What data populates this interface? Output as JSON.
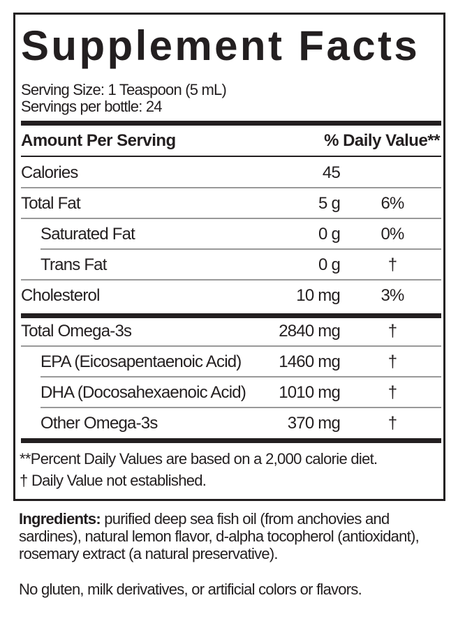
{
  "title": "Supplement Facts",
  "serving_size": "Serving Size: 1 Teaspoon (5 mL)",
  "servings_per": "Servings per bottle: 24",
  "header": {
    "amount": "Amount Per Serving",
    "dv": "% Daily Value**"
  },
  "rows": [
    {
      "label": "Calories",
      "amount": "45",
      "dv": ""
    },
    {
      "label": "Total Fat",
      "amount": "5 g",
      "dv": "6%"
    },
    {
      "label": "Saturated Fat",
      "amount": "0 g",
      "dv": "0%"
    },
    {
      "label": "Trans Fat",
      "amount": "0 g",
      "dv": "†"
    },
    {
      "label": "Cholesterol",
      "amount": "10 mg",
      "dv": "3%"
    },
    {
      "label": "Total Omega-3s",
      "amount": "2840 mg",
      "dv": "†"
    },
    {
      "label": "EPA (Eicosapentaenoic Acid)",
      "amount": "1460 mg",
      "dv": "†"
    },
    {
      "label": "DHA (Docosahexaenoic Acid)",
      "amount": "1010 mg",
      "dv": "†"
    },
    {
      "label": "Other Omega-3s",
      "amount": "370 mg",
      "dv": "†"
    }
  ],
  "footnotes": [
    "**Percent Daily Values are based on a 2,000 calorie diet.",
    "†  Daily Value not established."
  ],
  "ingredients": {
    "label": "Ingredients:",
    "text": " purified deep sea fish oil (from anchovies and sardines), natural lemon flavor, d-alpha tocopherol (antioxidant), rosemary extract (a natural preservative).",
    "note": "No gluten, milk derivatives, or artificial colors or flavors."
  }
}
